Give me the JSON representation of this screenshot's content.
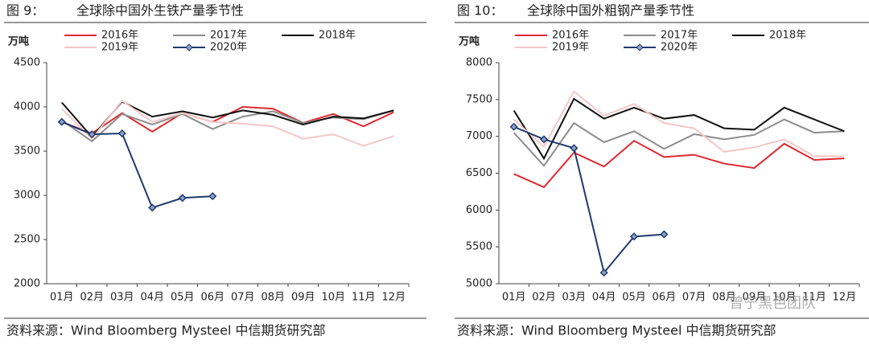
{
  "chart_data": [
    {
      "type": "line",
      "label": "图 9：",
      "title": "全球除中国外生铁产量季节性",
      "unit": "万吨",
      "source": "资料来源：Wind Bloomberg Mysteel 中信期货研究部",
      "categories": [
        "01月",
        "02月",
        "03月",
        "04月",
        "05月",
        "06月",
        "07月",
        "08月",
        "09月",
        "10月",
        "11月",
        "12月"
      ],
      "ylim": [
        2000,
        4500
      ],
      "yticks": [
        2000,
        2500,
        3000,
        3500,
        4000,
        4500
      ],
      "series": [
        {
          "name": "2016年",
          "color": "#e0282e",
          "values": [
            3830,
            3700,
            3930,
            3720,
            3930,
            3830,
            4000,
            3980,
            3820,
            3920,
            3780,
            3940
          ]
        },
        {
          "name": "2017年",
          "color": "#8c8c8c",
          "values": [
            3850,
            3610,
            3920,
            3800,
            3920,
            3750,
            3890,
            3950,
            3820,
            3880,
            3860,
            3960
          ]
        },
        {
          "name": "2018年",
          "color": "#111111",
          "values": [
            4050,
            3660,
            4060,
            3890,
            3950,
            3880,
            3960,
            3910,
            3800,
            3890,
            3870,
            3960
          ]
        },
        {
          "name": "2019年",
          "color": "#f5c6c8",
          "values": [
            3980,
            3640,
            4070,
            3830,
            3930,
            3830,
            3810,
            3780,
            3640,
            3690,
            3560,
            3670
          ]
        },
        {
          "name": "2020年",
          "color": "#1f3a6e",
          "marker": "diamond",
          "values": [
            3830,
            3690,
            3700,
            2860,
            2970,
            2990,
            null,
            null,
            null,
            null,
            null,
            null
          ]
        }
      ]
    },
    {
      "type": "line",
      "label": "图 10：",
      "title": "全球除中国外粗钢产量季节性",
      "unit": "万吨",
      "source": "资料来源：Wind Bloomberg Mysteel 中信期货研究部",
      "categories": [
        "01月",
        "02月",
        "03月",
        "04月",
        "05月",
        "06月",
        "07月",
        "08月",
        "09月",
        "10月",
        "11月",
        "12月"
      ],
      "ylim": [
        5000,
        8000
      ],
      "yticks": [
        5000,
        5500,
        6000,
        6500,
        7000,
        7500,
        8000
      ],
      "series": [
        {
          "name": "2016年",
          "color": "#e0282e",
          "values": [
            6490,
            6310,
            6780,
            6590,
            6940,
            6720,
            6750,
            6630,
            6570,
            6900,
            6680,
            6700
          ]
        },
        {
          "name": "2017年",
          "color": "#8c8c8c",
          "values": [
            7050,
            6600,
            7180,
            6920,
            7070,
            6830,
            7030,
            6960,
            7020,
            7230,
            7050,
            7070
          ]
        },
        {
          "name": "2018年",
          "color": "#111111",
          "values": [
            7350,
            6700,
            7510,
            7240,
            7390,
            7240,
            7290,
            7110,
            7090,
            7390,
            7230,
            7070
          ]
        },
        {
          "name": "2019年",
          "color": "#f5c6c8",
          "values": [
            7230,
            6860,
            7610,
            7280,
            7440,
            7180,
            7110,
            6790,
            6850,
            6960,
            6730,
            6730
          ]
        },
        {
          "name": "2020年",
          "color": "#1f3a6e",
          "marker": "diamond",
          "values": [
            7130,
            6960,
            6840,
            5150,
            5640,
            5670,
            null,
            null,
            null,
            null,
            null,
            null
          ]
        }
      ]
    }
  ],
  "watermark": "曾宁黑色团队"
}
